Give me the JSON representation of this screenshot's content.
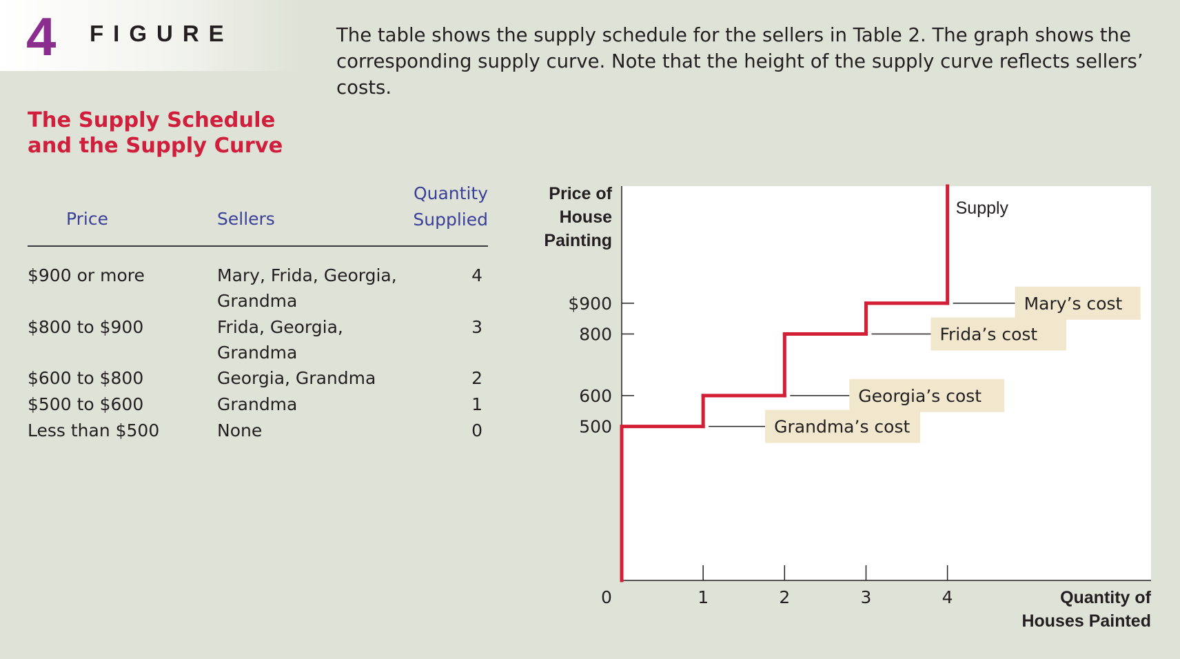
{
  "figure": {
    "number": "4",
    "word": "FIGURE",
    "caption": "The table shows the supply schedule for the sellers in Table 2. The graph shows the corresponding supply curve. Note that the height of the supply curve reflects sellers’ costs.",
    "title_line1": "The Supply Schedule",
    "title_line2": "and the Supply Curve"
  },
  "table": {
    "headers": {
      "price": "Price",
      "sellers": "Sellers",
      "quantity_line1": "Quantity",
      "quantity_line2": "Supplied"
    },
    "rows": [
      {
        "price": "$900 or more",
        "sellers": "Mary, Frida, Georgia, Grandma",
        "quantity": "4"
      },
      {
        "price": "$800 to $900",
        "sellers": "Frida, Georgia, Grandma",
        "quantity": "3"
      },
      {
        "price": "$600 to $800",
        "sellers": "Georgia, Grandma",
        "quantity": "2"
      },
      {
        "price": "$500 to $600",
        "sellers": "Grandma",
        "quantity": "1"
      },
      {
        "price": "Less than $500",
        "sellers": "None",
        "quantity": "0"
      }
    ]
  },
  "chart_data": {
    "type": "line",
    "ylabel_lines": [
      "Price of",
      "House",
      "Painting"
    ],
    "xlabel_lines": [
      "Quantity of",
      "Houses Painted"
    ],
    "x_ticks": [
      "1",
      "2",
      "3",
      "4"
    ],
    "origin_label": "0",
    "y_ticks": [
      {
        "value": 900,
        "label": "$900"
      },
      {
        "value": 800,
        "label": "800"
      },
      {
        "value": 600,
        "label": "600"
      },
      {
        "value": 500,
        "label": "500"
      }
    ],
    "xlim": [
      0,
      6.5
    ],
    "ylim": [
      0,
      1280
    ],
    "series": [
      {
        "name": "Supply",
        "steps": [
          {
            "quantity": 0,
            "price_from": 0,
            "price_to": 500
          },
          {
            "quantity": 1,
            "price_from": 500,
            "price_to": 600
          },
          {
            "quantity": 2,
            "price_from": 600,
            "price_to": 800
          },
          {
            "quantity": 3,
            "price_from": 800,
            "price_to": 900
          },
          {
            "quantity": 4,
            "price_from": 900,
            "price_to": 1280
          }
        ]
      }
    ],
    "annotations": [
      {
        "label": "Mary’s cost",
        "price": 900,
        "quantity": 4
      },
      {
        "label": "Frida’s cost",
        "price": 800,
        "quantity": 3
      },
      {
        "label": "Georgia’s cost",
        "price": 600,
        "quantity": 2
      },
      {
        "label": "Grandma’s cost",
        "price": 500,
        "quantity": 1
      }
    ],
    "colors": {
      "supply": "#d21f36",
      "label_bg": "#f1e7cd",
      "plot_bg": "#ffffff"
    }
  }
}
